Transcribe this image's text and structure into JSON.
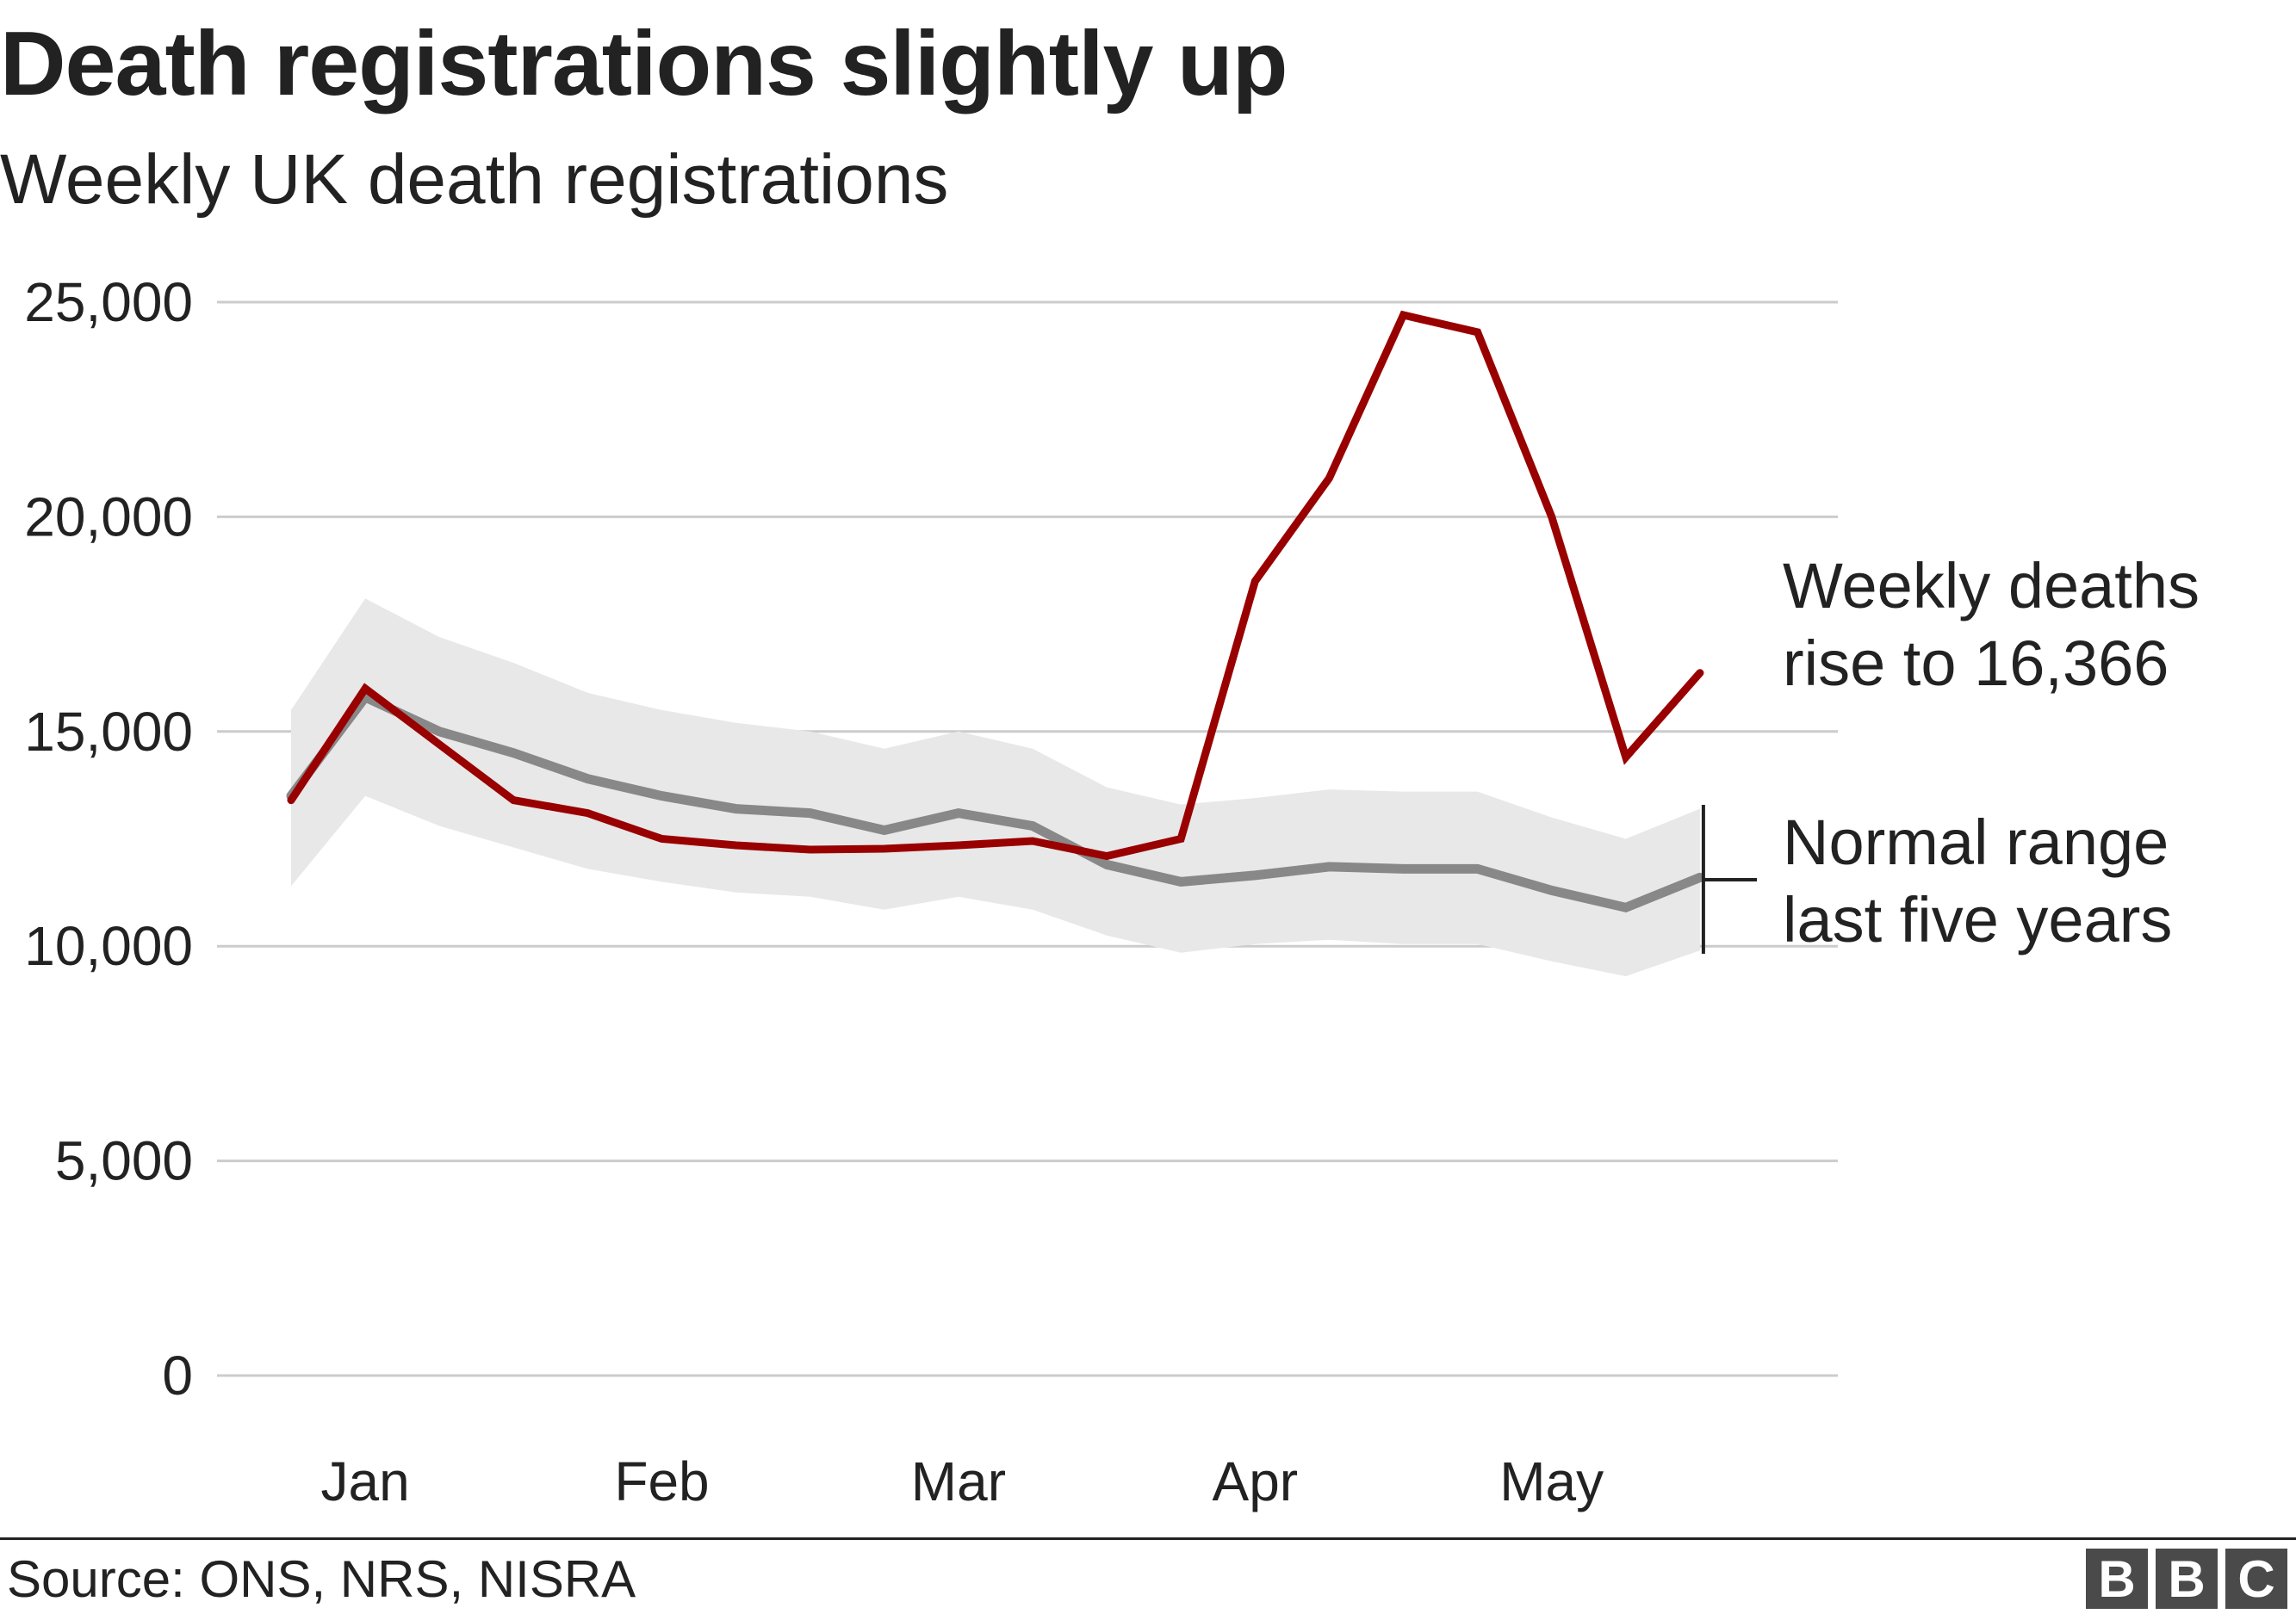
{
  "chart_data": {
    "type": "line",
    "title": "Death registrations slightly up",
    "subtitle": "Weekly UK death registrations",
    "xlabel": "",
    "ylabel": "",
    "ylim": [
      0,
      25000
    ],
    "y_ticks": [
      0,
      5000,
      10000,
      15000,
      20000,
      25000
    ],
    "y_tick_labels": [
      "0",
      "5,000",
      "10,000",
      "15,000",
      "20,000",
      "25,000"
    ],
    "x_labels": [
      "Jan",
      "Feb",
      "Mar",
      "Apr",
      "May"
    ],
    "x_label_weeks": [
      2,
      6,
      10,
      14,
      18
    ],
    "weeks": [
      1,
      2,
      3,
      4,
      5,
      6,
      7,
      8,
      9,
      10,
      11,
      12,
      13,
      14,
      15,
      16,
      17,
      18,
      19,
      20
    ],
    "grid": true,
    "series": [
      {
        "name": "",
        "color": "#990000",
        "values": [
          13400,
          16000,
          14700,
          13400,
          13100,
          12500,
          12350,
          12250,
          12270,
          12350,
          12450,
          12100,
          12500,
          18500,
          20900,
          24700,
          24300,
          20000,
          14400,
          16366
        ]
      },
      {
        "name": "",
        "color": "#888888",
        "values": [
          13500,
          15800,
          15000,
          14500,
          13900,
          13500,
          13200,
          13100,
          12700,
          13100,
          12800,
          11900,
          11500,
          11650,
          11850,
          11800,
          11800,
          11300,
          10900,
          11600
        ]
      }
    ],
    "range": {
      "color": "#e8e8e8",
      "upper": [
        15500,
        18100,
        17200,
        16600,
        15900,
        15500,
        15200,
        15000,
        14600,
        15000,
        14600,
        13700,
        13300,
        13450,
        13650,
        13600,
        13600,
        13000,
        12500,
        13200
      ],
      "lower": [
        11400,
        13500,
        12800,
        12300,
        11800,
        11500,
        11250,
        11150,
        10850,
        11150,
        10850,
        10250,
        9850,
        10050,
        10150,
        10050,
        10050,
        9650,
        9300,
        9900
      ]
    },
    "annotations": [
      {
        "name": "weekly-deaths-annotation",
        "lines": [
          "Weekly deaths",
          "rise to 16,366"
        ]
      },
      {
        "name": "normal-range-annotation",
        "lines": [
          "Normal range",
          "last five years"
        ]
      }
    ]
  },
  "footer": {
    "source": "Source: ONS, NRS, NISRA",
    "logo_letters": [
      "B",
      "B",
      "C"
    ]
  }
}
